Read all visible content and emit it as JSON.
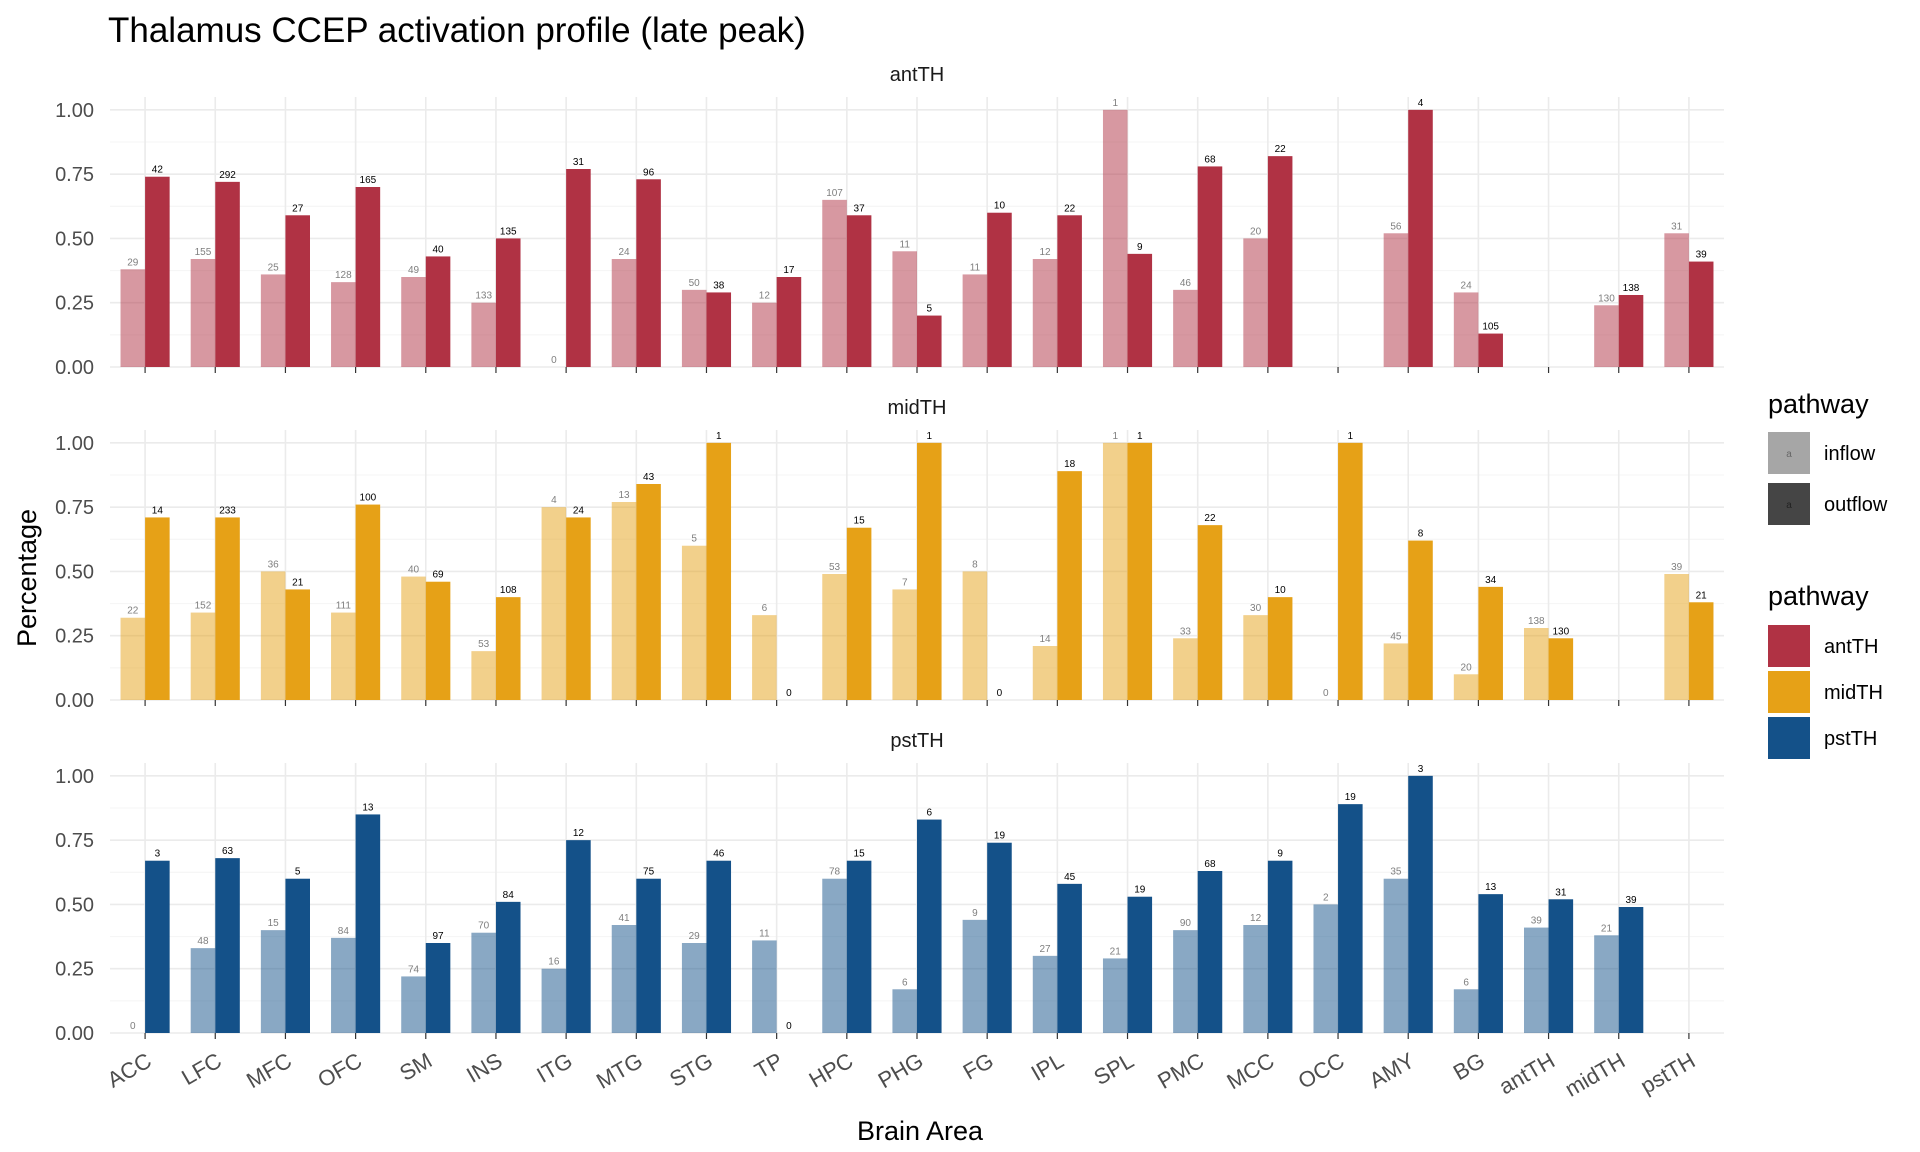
{
  "chart_data": {
    "type": "bar",
    "title": "Thalamus CCEP activation profile (late peak)",
    "xlabel": "Brain Area",
    "ylabel": "Percentage",
    "ylim": [
      0,
      1.05
    ],
    "yticks": [
      "0.00",
      "0.25",
      "0.50",
      "0.75",
      "1.00"
    ],
    "categories": [
      "ACC",
      "LFC",
      "MFC",
      "OFC",
      "SM",
      "INS",
      "ITG",
      "MTG",
      "STG",
      "TP",
      "HPC",
      "PHG",
      "FG",
      "IPL",
      "SPL",
      "PMC",
      "MCC",
      "OCC",
      "AMY",
      "BG",
      "antTH",
      "midTH",
      "pstTH"
    ],
    "grid": true,
    "legend_placement": "right",
    "legends": [
      {
        "title": "pathway",
        "items": [
          {
            "label": "inflow",
            "key_text": "a",
            "color": "#a6a6a6"
          },
          {
            "label": "outflow",
            "key_text": "a",
            "color": "#454545"
          }
        ]
      },
      {
        "title": "pathway",
        "items": [
          {
            "label": "antTH",
            "color": "#b03244"
          },
          {
            "label": "midTH",
            "color": "#e6a117"
          },
          {
            "label": "pstTH",
            "color": "#145189"
          }
        ]
      }
    ],
    "panels": [
      {
        "name": "antTH",
        "color": "#b03244",
        "inflow": [
          {
            "value": 0.38,
            "label": "29"
          },
          {
            "value": 0.42,
            "label": "155"
          },
          {
            "value": 0.36,
            "label": "25"
          },
          {
            "value": 0.33,
            "label": "128"
          },
          {
            "value": 0.35,
            "label": "49"
          },
          {
            "value": 0.25,
            "label": "133"
          },
          {
            "value": 0.0,
            "label": "0"
          },
          {
            "value": 0.42,
            "label": "24"
          },
          {
            "value": 0.3,
            "label": "50"
          },
          {
            "value": 0.25,
            "label": "12"
          },
          {
            "value": 0.65,
            "label": "107"
          },
          {
            "value": 0.45,
            "label": "11"
          },
          {
            "value": 0.36,
            "label": "11"
          },
          {
            "value": 0.42,
            "label": "12"
          },
          {
            "value": 1.0,
            "label": "1"
          },
          {
            "value": 0.3,
            "label": "46"
          },
          {
            "value": 0.5,
            "label": "20"
          },
          null,
          {
            "value": 0.52,
            "label": "56"
          },
          {
            "value": 0.29,
            "label": "24"
          },
          null,
          {
            "value": 0.24,
            "label": "130"
          },
          {
            "value": 0.52,
            "label": "31"
          }
        ],
        "outflow": [
          {
            "value": 0.74,
            "label": "42"
          },
          {
            "value": 0.72,
            "label": "292"
          },
          {
            "value": 0.59,
            "label": "27"
          },
          {
            "value": 0.7,
            "label": "165"
          },
          {
            "value": 0.43,
            "label": "40"
          },
          {
            "value": 0.5,
            "label": "135"
          },
          {
            "value": 0.77,
            "label": "31"
          },
          {
            "value": 0.73,
            "label": "96"
          },
          {
            "value": 0.29,
            "label": "38"
          },
          {
            "value": 0.35,
            "label": "17"
          },
          {
            "value": 0.59,
            "label": "37"
          },
          {
            "value": 0.2,
            "label": "5"
          },
          {
            "value": 0.6,
            "label": "10"
          },
          {
            "value": 0.59,
            "label": "22"
          },
          {
            "value": 0.44,
            "label": "9"
          },
          {
            "value": 0.78,
            "label": "68"
          },
          {
            "value": 0.82,
            "label": "22"
          },
          null,
          {
            "value": 1.0,
            "label": "4"
          },
          {
            "value": 0.13,
            "label": "105"
          },
          null,
          {
            "value": 0.28,
            "label": "138"
          },
          {
            "value": 0.41,
            "label": "39"
          }
        ]
      },
      {
        "name": "midTH",
        "color": "#e6a117",
        "inflow": [
          {
            "value": 0.32,
            "label": "22"
          },
          {
            "value": 0.34,
            "label": "152"
          },
          {
            "value": 0.5,
            "label": "36"
          },
          {
            "value": 0.34,
            "label": "111"
          },
          {
            "value": 0.48,
            "label": "40"
          },
          {
            "value": 0.19,
            "label": "53"
          },
          {
            "value": 0.75,
            "label": "4"
          },
          {
            "value": 0.77,
            "label": "13"
          },
          {
            "value": 0.6,
            "label": "5"
          },
          {
            "value": 0.33,
            "label": "6"
          },
          {
            "value": 0.49,
            "label": "53"
          },
          {
            "value": 0.43,
            "label": "7"
          },
          {
            "value": 0.5,
            "label": "8"
          },
          {
            "value": 0.21,
            "label": "14"
          },
          {
            "value": 1.0,
            "label": "1"
          },
          {
            "value": 0.24,
            "label": "33"
          },
          {
            "value": 0.33,
            "label": "30"
          },
          {
            "value": 0.0,
            "label": "0"
          },
          {
            "value": 0.22,
            "label": "45"
          },
          {
            "value": 0.1,
            "label": "20"
          },
          {
            "value": 0.28,
            "label": "138"
          },
          null,
          {
            "value": 0.49,
            "label": "39"
          }
        ],
        "outflow": [
          {
            "value": 0.71,
            "label": "14"
          },
          {
            "value": 0.71,
            "label": "233"
          },
          {
            "value": 0.43,
            "label": "21"
          },
          {
            "value": 0.76,
            "label": "100"
          },
          {
            "value": 0.46,
            "label": "69"
          },
          {
            "value": 0.4,
            "label": "108"
          },
          {
            "value": 0.71,
            "label": "24"
          },
          {
            "value": 0.84,
            "label": "43"
          },
          {
            "value": 1.0,
            "label": "1"
          },
          {
            "value": 0.0,
            "label": "0"
          },
          {
            "value": 0.67,
            "label": "15"
          },
          {
            "value": 1.0,
            "label": "1"
          },
          {
            "value": 0.0,
            "label": "0"
          },
          {
            "value": 0.89,
            "label": "18"
          },
          {
            "value": 1.0,
            "label": "1"
          },
          {
            "value": 0.68,
            "label": "22"
          },
          {
            "value": 0.4,
            "label": "10"
          },
          {
            "value": 1.0,
            "label": "1"
          },
          {
            "value": 0.62,
            "label": "8"
          },
          {
            "value": 0.44,
            "label": "34"
          },
          {
            "value": 0.24,
            "label": "130"
          },
          null,
          {
            "value": 0.38,
            "label": "21"
          }
        ]
      },
      {
        "name": "pstTH",
        "color": "#145189",
        "inflow": [
          {
            "value": 0.0,
            "label": "0"
          },
          {
            "value": 0.33,
            "label": "48"
          },
          {
            "value": 0.4,
            "label": "15"
          },
          {
            "value": 0.37,
            "label": "84"
          },
          {
            "value": 0.22,
            "label": "74"
          },
          {
            "value": 0.39,
            "label": "70"
          },
          {
            "value": 0.25,
            "label": "16"
          },
          {
            "value": 0.42,
            "label": "41"
          },
          {
            "value": 0.35,
            "label": "29"
          },
          {
            "value": 0.36,
            "label": "11"
          },
          {
            "value": 0.6,
            "label": "78"
          },
          {
            "value": 0.17,
            "label": "6"
          },
          {
            "value": 0.44,
            "label": "9"
          },
          {
            "value": 0.3,
            "label": "27"
          },
          {
            "value": 0.29,
            "label": "21"
          },
          {
            "value": 0.4,
            "label": "90"
          },
          {
            "value": 0.42,
            "label": "12"
          },
          {
            "value": 0.5,
            "label": "2"
          },
          {
            "value": 0.6,
            "label": "35"
          },
          {
            "value": 0.17,
            "label": "6"
          },
          {
            "value": 0.41,
            "label": "39"
          },
          {
            "value": 0.38,
            "label": "21"
          },
          null
        ],
        "outflow": [
          {
            "value": 0.67,
            "label": "3"
          },
          {
            "value": 0.68,
            "label": "63"
          },
          {
            "value": 0.6,
            "label": "5"
          },
          {
            "value": 0.85,
            "label": "13"
          },
          {
            "value": 0.35,
            "label": "97"
          },
          {
            "value": 0.51,
            "label": "84"
          },
          {
            "value": 0.75,
            "label": "12"
          },
          {
            "value": 0.6,
            "label": "75"
          },
          {
            "value": 0.67,
            "label": "46"
          },
          {
            "value": 0.0,
            "label": "0"
          },
          {
            "value": 0.67,
            "label": "15"
          },
          {
            "value": 0.83,
            "label": "6"
          },
          {
            "value": 0.74,
            "label": "19"
          },
          {
            "value": 0.58,
            "label": "45"
          },
          {
            "value": 0.53,
            "label": "19"
          },
          {
            "value": 0.63,
            "label": "68"
          },
          {
            "value": 0.67,
            "label": "9"
          },
          {
            "value": 0.89,
            "label": "19"
          },
          {
            "value": 1.0,
            "label": "3"
          },
          {
            "value": 0.54,
            "label": "13"
          },
          {
            "value": 0.52,
            "label": "31"
          },
          {
            "value": 0.49,
            "label": "39"
          },
          null
        ]
      }
    ]
  }
}
